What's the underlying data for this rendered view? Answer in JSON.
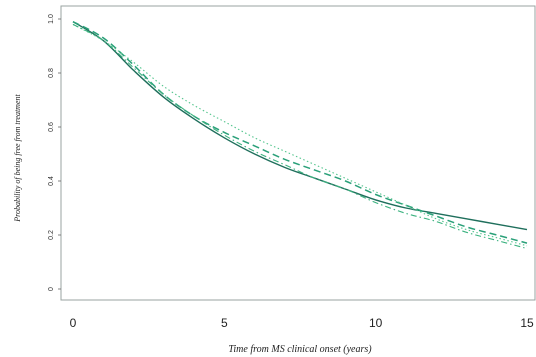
{
  "chart_data": {
    "type": "line",
    "xlabel": "Time from MS clinical onset (years)",
    "ylabel": "Probability of being free from treatment",
    "xlim": [
      0,
      15
    ],
    "ylim": [
      0,
      1
    ],
    "x_ticks": [
      "0",
      "5",
      "10",
      "15"
    ],
    "y_ticks": [
      "0",
      "0.2",
      "0.4",
      "0.6",
      "0.8",
      "1.0"
    ],
    "grid": false,
    "x": [
      0,
      1,
      2,
      3,
      4,
      5,
      6,
      7,
      8,
      9,
      10,
      11,
      12,
      13,
      14,
      15
    ],
    "series": [
      {
        "values": [
          0.99,
          0.92,
          0.81,
          0.71,
          0.63,
          0.56,
          0.5,
          0.45,
          0.41,
          0.37,
          0.33,
          0.3,
          0.28,
          0.26,
          0.24,
          0.22
        ],
        "style": "solid",
        "color": "#1f6f5c"
      },
      {
        "values": [
          0.99,
          0.93,
          0.83,
          0.72,
          0.64,
          0.58,
          0.53,
          0.48,
          0.44,
          0.4,
          0.35,
          0.31,
          0.27,
          0.23,
          0.2,
          0.17
        ],
        "style": "dash",
        "color": "#2aa079"
      },
      {
        "values": [
          0.98,
          0.92,
          0.84,
          0.75,
          0.68,
          0.62,
          0.56,
          0.51,
          0.46,
          0.41,
          0.36,
          0.31,
          0.26,
          0.22,
          0.19,
          0.16
        ],
        "style": "dot",
        "color": "#55c58e"
      },
      {
        "values": [
          0.98,
          0.92,
          0.82,
          0.72,
          0.64,
          0.57,
          0.51,
          0.46,
          0.41,
          0.37,
          0.32,
          0.28,
          0.25,
          0.21,
          0.18,
          0.15
        ],
        "style": "dashdot",
        "color": "#3bb27f"
      }
    ]
  }
}
